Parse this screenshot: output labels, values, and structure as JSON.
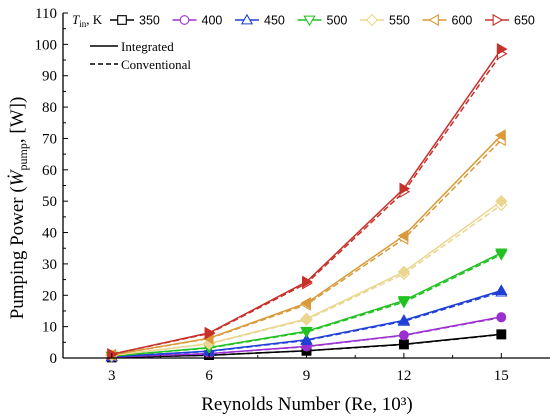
{
  "chart_data": {
    "type": "line",
    "xlabel": "Reynolds Number (Re, 10³)",
    "ylabel": "Pumping Power (Ẇpump, [W])",
    "ylabel_parts": {
      "pre": "Pumping Power (",
      "var": "W",
      "sub": "pump",
      "post": ", [W])"
    },
    "x": [
      3,
      6,
      9,
      12,
      15
    ],
    "xticks": [
      "3",
      "6",
      "9",
      "12",
      "15"
    ],
    "xlim": [
      1.5,
      16.5
    ],
    "ylim": [
      0,
      110
    ],
    "yticks": [
      0,
      10,
      20,
      30,
      40,
      50,
      60,
      70,
      80,
      90,
      100,
      110
    ],
    "legend_title": {
      "var": "T",
      "sub": "in",
      "unit": ", K"
    },
    "styles": {
      "Integrated": "solid",
      "Conventional": "dashed"
    },
    "style_labels": [
      "Integrated",
      "Conventional"
    ],
    "series": [
      {
        "name": "350",
        "color": "#000000",
        "marker": "square",
        "integrated": [
          0.2,
          0.9,
          2.3,
          4.4,
          7.6
        ],
        "conventional": [
          0.2,
          0.9,
          2.3,
          4.3,
          7.5
        ]
      },
      {
        "name": "400",
        "color": "#9b30d0",
        "marker": "circle",
        "integrated": [
          0.3,
          1.4,
          3.7,
          7.3,
          13.1
        ],
        "conventional": [
          0.3,
          1.4,
          3.6,
          7.2,
          12.9
        ]
      },
      {
        "name": "450",
        "color": "#1f3fd6",
        "marker": "triangle-up",
        "integrated": [
          0.4,
          2.2,
          5.8,
          12.0,
          21.5
        ],
        "conventional": [
          0.4,
          2.1,
          5.6,
          11.7,
          21.0
        ]
      },
      {
        "name": "500",
        "color": "#22c122",
        "marker": "triangle-down",
        "integrated": [
          0.6,
          3.3,
          8.5,
          18.3,
          33.5
        ],
        "conventional": [
          0.6,
          3.2,
          8.3,
          17.8,
          33.0
        ]
      },
      {
        "name": "550",
        "color": "#ead68f",
        "marker": "diamond",
        "integrated": [
          0.8,
          4.6,
          12.5,
          27.5,
          50.0
        ],
        "conventional": [
          0.8,
          4.5,
          12.2,
          26.8,
          48.8
        ]
      },
      {
        "name": "600",
        "color": "#d99a3a",
        "marker": "triangle-left",
        "integrated": [
          1.0,
          6.3,
          17.5,
          39.0,
          71.0
        ],
        "conventional": [
          1.0,
          6.2,
          17.0,
          38.0,
          69.5
        ]
      },
      {
        "name": "650",
        "color": "#c8302a",
        "marker": "triangle-right",
        "integrated": [
          1.2,
          8.0,
          24.3,
          54.0,
          98.5
        ],
        "conventional": [
          1.2,
          7.8,
          23.8,
          53.0,
          97.0
        ]
      }
    ]
  }
}
